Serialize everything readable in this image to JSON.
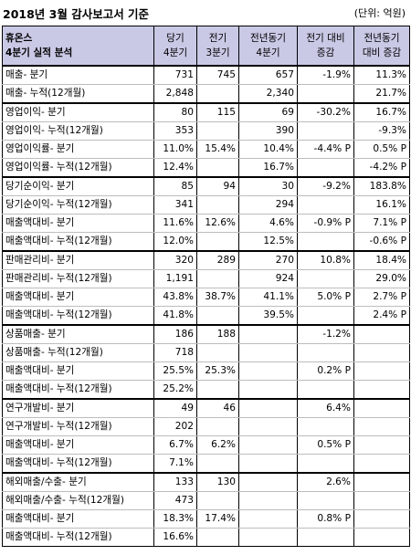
{
  "title": "2018년 3월 감사보고서 기준",
  "unit": "(단위: 억원)",
  "header": {
    "company": "휴온스",
    "subtitle": "4분기 실적 분석",
    "cols": [
      "당기\n4분기",
      "전기\n3분기",
      "전년동기\n4분기",
      "전기 대비\n증감",
      "전년동기\n대비 증감"
    ]
  },
  "groups": [
    {
      "rows": [
        {
          "label": "매출- 분기",
          "v": [
            "731",
            "745",
            "657",
            "-1.9%",
            "11.3%"
          ]
        },
        {
          "label": "매출- 누적(12개월)",
          "v": [
            "2,848",
            "",
            "2,340",
            "",
            "21.7%"
          ]
        }
      ]
    },
    {
      "rows": [
        {
          "label": "영업이익- 분기",
          "v": [
            "80",
            "115",
            "69",
            "-30.2%",
            "16.7%"
          ]
        },
        {
          "label": "영업이익- 누적(12개월)",
          "v": [
            "353",
            "",
            "390",
            "",
            "-9.3%"
          ]
        },
        {
          "label": "영업이익률- 분기",
          "v": [
            "11.0%",
            "15.4%",
            "10.4%",
            "-4.4% P",
            "0.5% P"
          ]
        },
        {
          "label": "영업이익률- 누적(12개월)",
          "v": [
            "12.4%",
            "",
            "16.7%",
            "",
            "-4.2% P"
          ]
        }
      ]
    },
    {
      "rows": [
        {
          "label": "당기순이익- 분기",
          "v": [
            "85",
            "94",
            "30",
            "-9.2%",
            "183.8%"
          ]
        },
        {
          "label": "당기순이익- 누적(12개월)",
          "v": [
            "341",
            "",
            "294",
            "",
            "16.1%"
          ]
        },
        {
          "label": "매출액대비- 분기",
          "v": [
            "11.6%",
            "12.6%",
            "4.6%",
            "-0.9% P",
            "7.1% P"
          ]
        },
        {
          "label": "매출액대비- 누적(12개월)",
          "v": [
            "12.0%",
            "",
            "12.5%",
            "",
            "-0.6% P"
          ]
        }
      ]
    },
    {
      "rows": [
        {
          "label": "판매관리비- 분기",
          "v": [
            "320",
            "289",
            "270",
            "10.8%",
            "18.4%"
          ]
        },
        {
          "label": "판매관리비- 누적(12개월)",
          "v": [
            "1,191",
            "",
            "924",
            "",
            "29.0%"
          ]
        },
        {
          "label": "매출액대비- 분기",
          "v": [
            "43.8%",
            "38.7%",
            "41.1%",
            "5.0% P",
            "2.7% P"
          ]
        },
        {
          "label": "매출액대비- 누적(12개월)",
          "v": [
            "41.8%",
            "",
            "39.5%",
            "",
            "2.4% P"
          ]
        }
      ]
    },
    {
      "rows": [
        {
          "label": "상품매출- 분기",
          "v": [
            "186",
            "188",
            "",
            "-1.2%",
            ""
          ]
        },
        {
          "label": "상품매출- 누적(12개월)",
          "v": [
            "718",
            "",
            "",
            "",
            ""
          ]
        },
        {
          "label": "매출액대비- 분기",
          "v": [
            "25.5%",
            "25.3%",
            "",
            "0.2% P",
            ""
          ]
        },
        {
          "label": "매출액대비- 누적(12개월)",
          "v": [
            "25.2%",
            "",
            "",
            "",
            ""
          ]
        }
      ]
    },
    {
      "rows": [
        {
          "label": "연구개발비- 분기",
          "v": [
            "49",
            "46",
            "",
            "6.4%",
            ""
          ]
        },
        {
          "label": "연구개발비- 누적(12개월)",
          "v": [
            "202",
            "",
            "",
            "",
            ""
          ]
        },
        {
          "label": "매출액대비- 분기",
          "v": [
            "6.7%",
            "6.2%",
            "",
            "0.5% P",
            ""
          ]
        },
        {
          "label": "매출액대비- 누적(12개월)",
          "v": [
            "7.1%",
            "",
            "",
            "",
            ""
          ]
        }
      ]
    },
    {
      "rows": [
        {
          "label": "해외매출/수출- 분기",
          "v": [
            "133",
            "130",
            "",
            "2.6%",
            ""
          ]
        },
        {
          "label": "해외매출/수출- 누적(12개월)",
          "v": [
            "473",
            "",
            "",
            "",
            ""
          ]
        },
        {
          "label": "매출액대비- 분기",
          "v": [
            "18.3%",
            "17.4%",
            "",
            "0.8% P",
            ""
          ]
        },
        {
          "label": "매출액대비- 누적(12개월)",
          "v": [
            "16.6%",
            "",
            "",
            "",
            ""
          ]
        }
      ]
    }
  ]
}
